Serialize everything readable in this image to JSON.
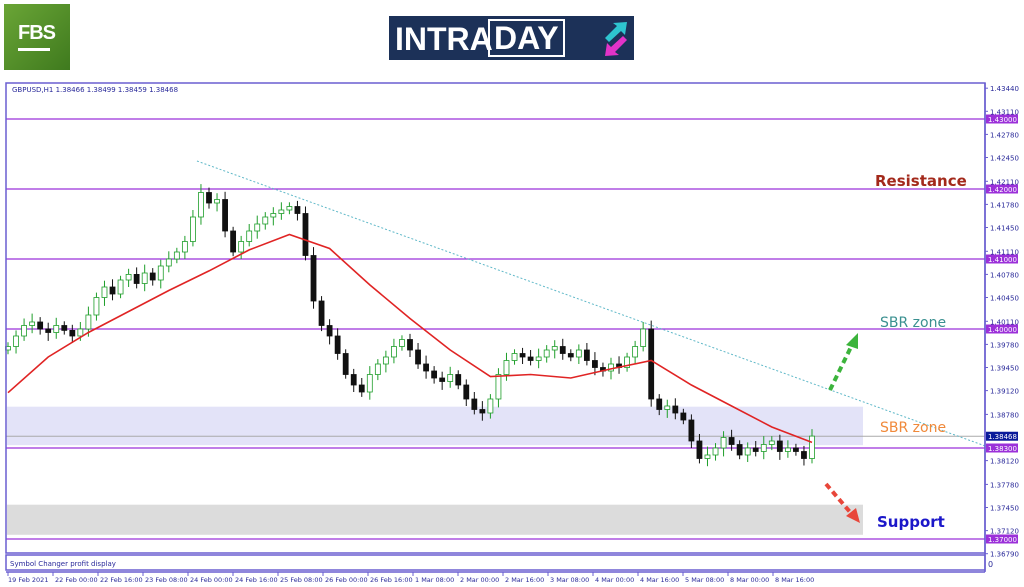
{
  "logos": {
    "left": "FBS",
    "center": "INTRADAY"
  },
  "chart_data": {
    "type": "candlestick",
    "header": "GBPUSD,H1  1.38466 1.38499 1.38459 1.38468",
    "ylim": [
      1.3665,
      1.4355
    ],
    "y_ticks": [
      "1.43440",
      "1.43110",
      "1.42780",
      "1.42450",
      "1.42110",
      "1.41780",
      "1.41450",
      "1.41110",
      "1.40780",
      "1.40450",
      "1.40110",
      "1.39780",
      "1.39450",
      "1.39120",
      "1.38780",
      "1.38120",
      "1.37780",
      "1.37450",
      "1.37120",
      "1.36790"
    ],
    "x_ticks": [
      "19 Feb 2021",
      "22 Feb 00:00",
      "22 Feb 16:00",
      "23 Feb 08:00",
      "24 Feb 00:00",
      "24 Feb 16:00",
      "25 Feb 08:00",
      "26 Feb 00:00",
      "26 Feb 16:00",
      "1 Mar 08:00",
      "2 Mar 00:00",
      "2 Mar 16:00",
      "3 Mar 08:00",
      "4 Mar 00:00",
      "4 Mar 16:00",
      "5 Mar 08:00",
      "8 Mar 00:00",
      "8 Mar 16:00"
    ],
    "closes": [
      1.3975,
      1.399,
      1.4005,
      1.401,
      1.4,
      1.3995,
      1.4005,
      1.3998,
      1.399,
      1.4,
      1.402,
      1.4045,
      1.406,
      1.405,
      1.407,
      1.4078,
      1.4065,
      1.408,
      1.407,
      1.409,
      1.41,
      1.411,
      1.4125,
      1.416,
      1.4195,
      1.418,
      1.4185,
      1.414,
      1.411,
      1.4125,
      1.414,
      1.415,
      1.416,
      1.4165,
      1.417,
      1.4175,
      1.4165,
      1.4105,
      1.404,
      1.4005,
      1.399,
      1.3965,
      1.3935,
      1.392,
      1.391,
      1.3935,
      1.395,
      1.396,
      1.3975,
      1.3985,
      1.397,
      1.395,
      1.394,
      1.393,
      1.3925,
      1.3935,
      1.392,
      1.39,
      1.3885,
      1.388,
      1.39,
      1.3935,
      1.3955,
      1.3965,
      1.396,
      1.3955,
      1.396,
      1.397,
      1.3975,
      1.3965,
      1.396,
      1.397,
      1.3955,
      1.3945,
      1.394,
      1.395,
      1.3945,
      1.396,
      1.3975,
      1.4,
      1.39,
      1.3885,
      1.389,
      1.388,
      1.387,
      1.384,
      1.3815,
      1.382,
      1.383,
      1.3845,
      1.3835,
      1.382,
      1.383,
      1.3825,
      1.3835,
      1.384,
      1.3825,
      1.383,
      1.3825,
      1.3815,
      1.3847
    ],
    "moving_average_every_5_candles": [
      1.3909,
      1.396,
      1.3995,
      1.4025,
      1.4055,
      1.4083,
      1.4113,
      1.4135,
      1.4115,
      1.4063,
      1.4015,
      1.397,
      1.3932,
      1.3935,
      1.393,
      1.3943,
      1.3955,
      1.392,
      1.389,
      1.386,
      1.3838
    ],
    "levels": [
      {
        "price": "1.43000"
      },
      {
        "price": "1.42000"
      },
      {
        "price": "1.41000"
      },
      {
        "price": "1.40000"
      },
      {
        "price": "1.38300"
      },
      {
        "price": "1.37000"
      }
    ],
    "current_price": "1.38468",
    "trendline": {
      "from": {
        "candle": 24,
        "price": 1.424
      },
      "to": {
        "candle": 122,
        "price": 1.3831
      }
    },
    "zones": [
      {
        "from": 1.3834,
        "to": 1.3889,
        "color": "#e3e3f8"
      },
      {
        "from": 1.3706,
        "to": 1.3749,
        "color": "#dcdcdc"
      }
    ],
    "annotations": [
      {
        "text": "Resistance",
        "color": "#a3291b"
      },
      {
        "text": "SBR zone",
        "color": "#3a9090"
      },
      {
        "text": "SBR zone",
        "color": "#f0893a"
      },
      {
        "text": "Support",
        "color": "#1b17c9"
      }
    ],
    "colors": {
      "up": "#1e9e2a",
      "down": "#111111",
      "ma": "#e02424",
      "level": "#9b30d9",
      "frame": "#6a5fd0"
    },
    "indicator_label": "Symbol Changer profit display",
    "indicator_value": "0"
  }
}
